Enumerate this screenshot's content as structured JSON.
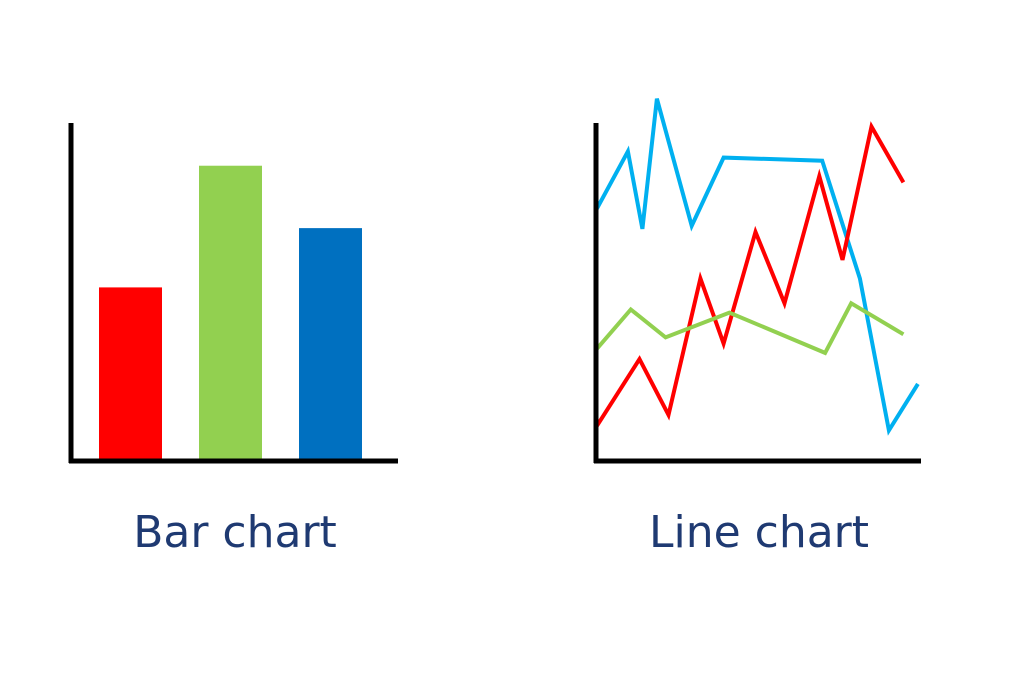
{
  "colors": {
    "axis": "#000000",
    "caption": "#1f3a72",
    "red": "#ff0000",
    "green": "#92d050",
    "blue": "#0070c0",
    "cyan": "#00b0f0"
  },
  "chart_data": [
    {
      "type": "bar",
      "title": "Bar chart",
      "categories": [
        "",
        "",
        ""
      ],
      "values": [
        55,
        94,
        74
      ],
      "bar_colors": [
        "#ff0000",
        "#92d050",
        "#0070c0"
      ],
      "ylim": [
        0,
        100
      ],
      "grid": false,
      "legend": "none"
    },
    {
      "type": "line",
      "title": "Line chart",
      "x": [
        0,
        1,
        2,
        3,
        4,
        5,
        6,
        7,
        8,
        9,
        10,
        11
      ],
      "series": [
        {
          "color": "#00b0f0",
          "points": [
            [
              0,
              77
            ],
            [
              1.1,
              96
            ],
            [
              1.6,
              71
            ],
            [
              2.1,
              113
            ],
            [
              3.3,
              72
            ],
            [
              4.4,
              94
            ],
            [
              7.8,
              93
            ],
            [
              9.1,
              55
            ],
            [
              10.1,
              6
            ],
            [
              11.1,
              21
            ]
          ]
        },
        {
          "color": "#ff0000",
          "points": [
            [
              0,
              7
            ],
            [
              1.5,
              29
            ],
            [
              2.5,
              11
            ],
            [
              3.6,
              55
            ],
            [
              4.4,
              34
            ],
            [
              5.5,
              70
            ],
            [
              6.5,
              47
            ],
            [
              7.7,
              88
            ],
            [
              8.5,
              61
            ],
            [
              9.5,
              104
            ],
            [
              10.6,
              86
            ]
          ]
        },
        {
          "color": "#92d050",
          "points": [
            [
              0,
              32
            ],
            [
              1.2,
              45
            ],
            [
              2.4,
              36
            ],
            [
              4.6,
              44
            ],
            [
              7.9,
              31
            ],
            [
              8.8,
              47
            ],
            [
              10.6,
              37
            ]
          ]
        }
      ],
      "ylim": [
        0,
        100
      ],
      "grid": false,
      "legend": "none"
    }
  ]
}
